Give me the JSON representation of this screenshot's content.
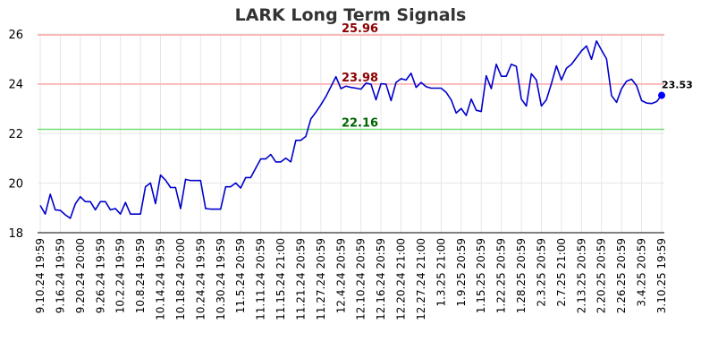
{
  "chart_data": {
    "type": "line",
    "title": "LARK Long Term Signals",
    "xlabel": "",
    "ylabel": "",
    "ylim": [
      18,
      26
    ],
    "yticks": [
      "18",
      "20",
      "22",
      "24",
      "26"
    ],
    "xtick_labels": [
      "9.10.24 19:59",
      "9.16.24 19:59",
      "9.20.24 20:00",
      "9.26.24 19:59",
      "10.2.24 19:59",
      "10.8.24 19:59",
      "10.14.24 19:59",
      "10.18.24 20:00",
      "10.24.24 19:59",
      "10.30.24 19:59",
      "11.5.24 20:59",
      "11.11.24 20:59",
      "11.15.24 21:00",
      "11.21.24 20:59",
      "11.27.24 20:59",
      "12.4.24 20:59",
      "12.10.24 20:59",
      "12.16.24 20:59",
      "12.20.24 21:00",
      "12.27.24 21:00",
      "1.3.25 21:00",
      "1.9.25 20:59",
      "1.15.25 20:59",
      "1.22.25 20:59",
      "1.28.25 20:59",
      "2.3.25 20:59",
      "2.7.25 21:00",
      "2.13.25 20:59",
      "2.20.25 20:59",
      "2.26.25 20:59",
      "3.4.25 20:59",
      "3.10.25 19:59"
    ],
    "grid": true,
    "series": [
      {
        "color": "#0000cc",
        "values": [
          19.1,
          18.75,
          19.55,
          18.92,
          18.9,
          18.72,
          18.58,
          19.16,
          19.45,
          19.25,
          19.25,
          18.92,
          19.25,
          19.25,
          18.92,
          18.97,
          18.75,
          19.22,
          18.75,
          18.75,
          18.75,
          19.85,
          20.0,
          19.17,
          20.32,
          20.12,
          19.82,
          19.82,
          18.97,
          20.15,
          20.1,
          20.1,
          20.1,
          18.97,
          18.95,
          18.95,
          18.95,
          19.85,
          19.85,
          20.0,
          19.8,
          20.22,
          20.22,
          20.6,
          20.97,
          20.97,
          21.15,
          20.85,
          20.85,
          21.0,
          20.85,
          21.72,
          21.72,
          21.88,
          22.58,
          22.85,
          23.15,
          23.48,
          23.88,
          24.28,
          23.8,
          23.9,
          23.85,
          23.82,
          23.78,
          24.02,
          23.98,
          23.35,
          24.0,
          23.98,
          23.32,
          24.05,
          24.2,
          24.15,
          24.42,
          23.85,
          24.05,
          23.88,
          23.82,
          23.82,
          23.82,
          23.65,
          23.35,
          22.82,
          23.0,
          22.72,
          23.38,
          22.93,
          22.88,
          24.32,
          23.8,
          24.78,
          24.3,
          24.3,
          24.78,
          24.7,
          23.38,
          23.1,
          24.4,
          24.15,
          23.1,
          23.35,
          24.0,
          24.72,
          24.15,
          24.62,
          24.78,
          25.05,
          25.32,
          25.52,
          24.98,
          25.72,
          25.35,
          25.0,
          23.52,
          23.25,
          23.8,
          24.1,
          24.18,
          23.92,
          23.32,
          23.22,
          23.2,
          23.28,
          23.53
        ]
      }
    ],
    "reference_lines": [
      {
        "value": 25.96,
        "label": "25.96",
        "line_color": "#ffaaaa",
        "label_color": "#8b0000"
      },
      {
        "value": 23.98,
        "label": "23.98",
        "line_color": "#ffaaaa",
        "label_color": "#8b0000"
      },
      {
        "value": 22.16,
        "label": "22.16",
        "line_color": "#77dd77",
        "label_color": "#006400"
      }
    ],
    "last_value": {
      "value": 23.53,
      "label": "23.53",
      "color": "#0000ff"
    }
  }
}
